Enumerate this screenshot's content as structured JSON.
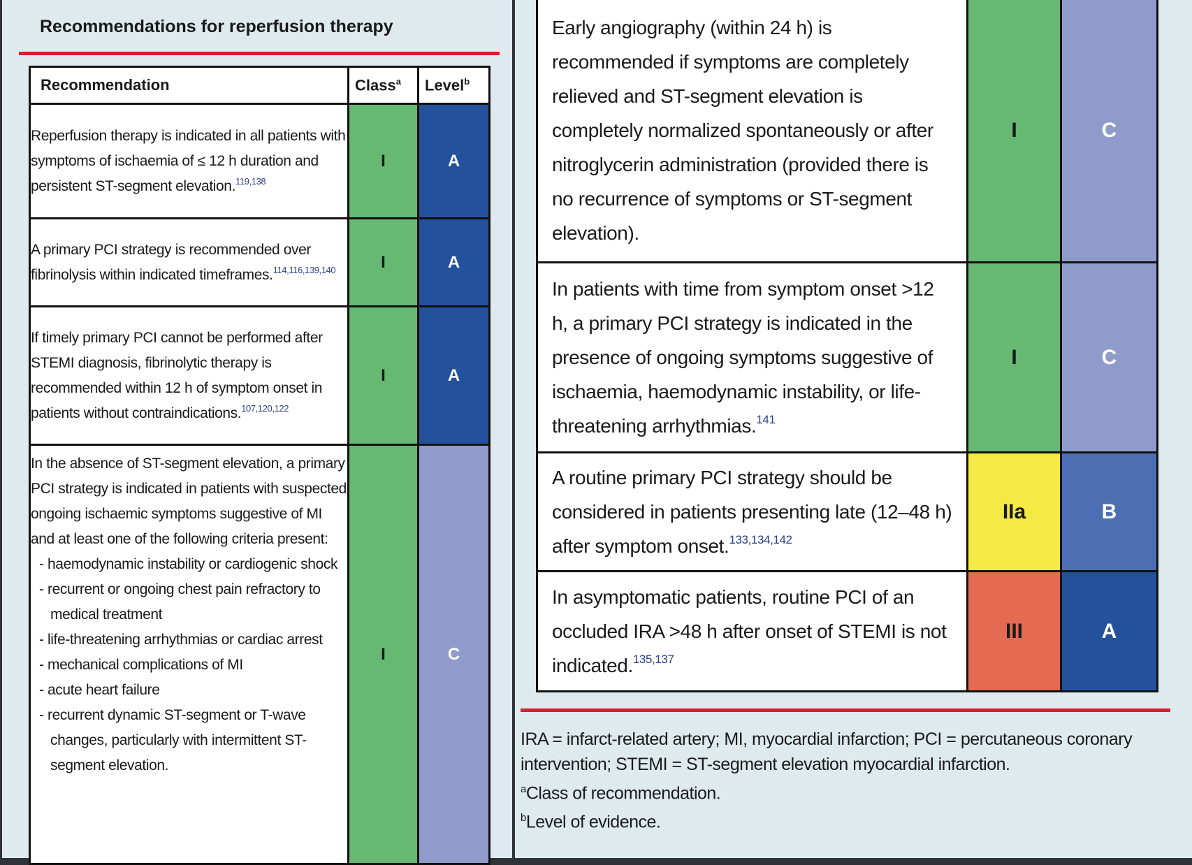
{
  "left": {
    "title": "Recommendations for reperfusion therapy",
    "header": {
      "recommendation": "Recommendation",
      "class": "Class",
      "class_sup": "a",
      "level": "Level",
      "level_sup": "b"
    },
    "rows": [
      {
        "text": "Reperfusion therapy is indicated in all patients with symptoms of ischaemia of ≤ 12 h duration and persistent ST-segment elevation.",
        "refs": "119,138",
        "class": "I",
        "level": "A"
      },
      {
        "text": "A primary PCI strategy is recommended over fibrinolysis within indicated timeframes.",
        "refs": "114,116,139,140",
        "class": "I",
        "level": "A"
      },
      {
        "text": "If timely primary PCI cannot be performed after STEMI diagnosis, fibrinolytic therapy is recommended within 12 h of symptom onset in patients without contraindications.",
        "refs": "107,120,122",
        "class": "I",
        "level": "A"
      },
      {
        "text": "In the absence of ST-segment elevation, a primary PCI strategy is indicated in patients with suspected ongoing ischaemic symptoms suggestive of MI and at least one of the following criteria present:",
        "criteria": [
          "- haemodynamic instability or cardiogenic shock",
          "- recurrent or ongoing chest pain refractory to medical treatment",
          "- life-threatening arrhythmias or cardiac arrest",
          "- mechanical complications of MI",
          "- acute heart failure",
          "- recurrent dynamic ST-segment or T-wave changes, particularly with intermittent ST-segment elevation."
        ],
        "class": "I",
        "level": "C"
      }
    ]
  },
  "right": {
    "rows": [
      {
        "text": "Early angiography (within 24 h) is recommended if symptoms are completely relieved and ST-segment elevation is completely normalized spontaneously or after nitroglycerin administration (provided there is no recurrence of symptoms or ST-segment elevation).",
        "refs": "",
        "class": "I",
        "level": "C"
      },
      {
        "text": "In patients with time from symptom onset >12 h, a primary PCI strategy is indicated in the presence of ongoing symptoms suggestive of ischaemia, haemodynamic instability, or life-threatening arrhythmias.",
        "refs": "141",
        "class": "I",
        "level": "C"
      },
      {
        "text": "A routine primary PCI strategy should be considered in patients presenting late (12–48 h) after symptom onset.",
        "refs": "133,134,142",
        "class": "IIa",
        "level": "B"
      },
      {
        "text": "In asymptomatic patients, routine PCI of an occluded IRA >48 h after onset of STEMI is not indicated.",
        "refs": "135,137",
        "class": "III",
        "level": "A"
      }
    ],
    "footnotes": {
      "abbreviations": "IRA = infarct-related artery; MI, myocardial infarction; PCI = percutaneous coronary intervention; STEMI = ST-segment elevation myocardial infarction.",
      "a_marker": "a",
      "a_text": "Class of recommendation.",
      "b_marker": "b",
      "b_text": "Level of evidence."
    }
  },
  "colors": {
    "class_I": "#66b873",
    "class_IIa": "#f4ea44",
    "class_III": "#e56a52",
    "level_A": "#23519b",
    "level_B": "#4b6fb2",
    "level_C": "#8f9ccb",
    "accent_rule": "#d4202f",
    "panel_bg": "#dfeaef"
  }
}
